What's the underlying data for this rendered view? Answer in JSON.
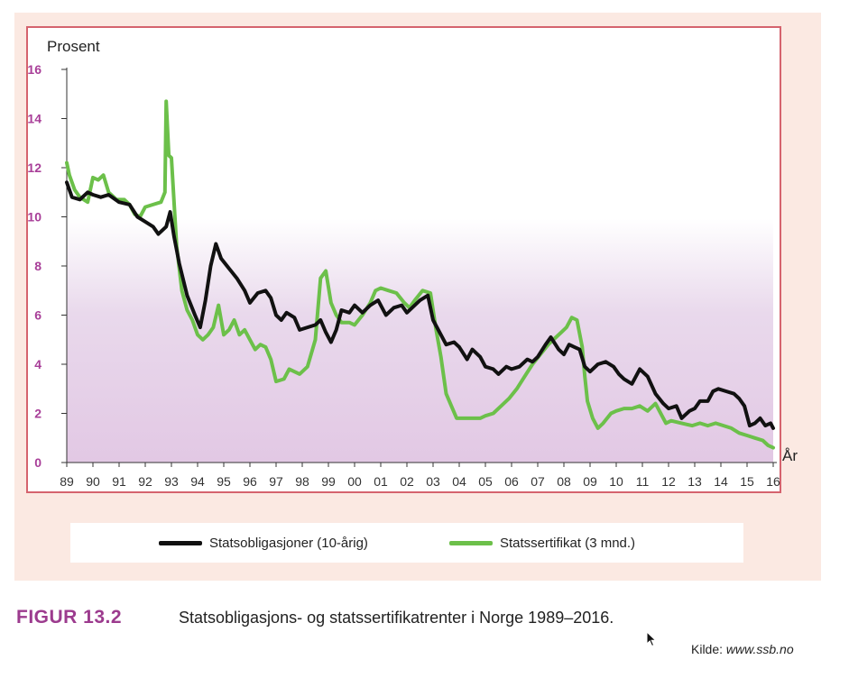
{
  "figure": {
    "label": "FIGUR 13.2",
    "title": "Statsobligasjons- og statssertifikatrenter i Norge 1989–2016.",
    "source_prefix": "Kilde: ",
    "source_url": "www.ssb.no"
  },
  "chart_data": {
    "type": "line",
    "ylabel": "Prosent",
    "xlabel": "År",
    "ylim": [
      0,
      16
    ],
    "xlim": [
      1989,
      2016
    ],
    "yticks": [
      "0",
      "2",
      "4",
      "6",
      "8",
      "10",
      "12",
      "14",
      "16"
    ],
    "xticks": [
      "89",
      "90",
      "91",
      "92",
      "93",
      "94",
      "95",
      "96",
      "97",
      "98",
      "99",
      "00",
      "01",
      "02",
      "03",
      "04",
      "05",
      "06",
      "07",
      "08",
      "09",
      "10",
      "11",
      "12",
      "13",
      "14",
      "15",
      "16"
    ],
    "grid": false,
    "legend_position": "bottom",
    "series": [
      {
        "name": "Statsobligasjoner (10-årig)",
        "color": "#111111",
        "points": [
          [
            1989.0,
            11.4
          ],
          [
            1989.2,
            10.8
          ],
          [
            1989.5,
            10.7
          ],
          [
            1989.8,
            11.0
          ],
          [
            1990.0,
            10.9
          ],
          [
            1990.3,
            10.8
          ],
          [
            1990.6,
            10.9
          ],
          [
            1991.0,
            10.6
          ],
          [
            1991.4,
            10.5
          ],
          [
            1991.7,
            10.0
          ],
          [
            1992.0,
            9.8
          ],
          [
            1992.3,
            9.6
          ],
          [
            1992.5,
            9.3
          ],
          [
            1992.8,
            9.6
          ],
          [
            1992.95,
            10.2
          ],
          [
            1993.1,
            9.2
          ],
          [
            1993.3,
            8.1
          ],
          [
            1993.6,
            6.8
          ],
          [
            1993.9,
            6.0
          ],
          [
            1994.1,
            5.5
          ],
          [
            1994.3,
            6.6
          ],
          [
            1994.5,
            8.0
          ],
          [
            1994.7,
            8.9
          ],
          [
            1994.9,
            8.3
          ],
          [
            1995.2,
            7.9
          ],
          [
            1995.5,
            7.5
          ],
          [
            1995.8,
            7.0
          ],
          [
            1996.0,
            6.5
          ],
          [
            1996.3,
            6.9
          ],
          [
            1996.6,
            7.0
          ],
          [
            1996.8,
            6.7
          ],
          [
            1997.0,
            6.0
          ],
          [
            1997.2,
            5.8
          ],
          [
            1997.4,
            6.1
          ],
          [
            1997.7,
            5.9
          ],
          [
            1997.9,
            5.4
          ],
          [
            1998.2,
            5.5
          ],
          [
            1998.5,
            5.6
          ],
          [
            1998.7,
            5.8
          ],
          [
            1998.9,
            5.3
          ],
          [
            1999.1,
            4.9
          ],
          [
            1999.3,
            5.4
          ],
          [
            1999.5,
            6.2
          ],
          [
            1999.8,
            6.1
          ],
          [
            2000.0,
            6.4
          ],
          [
            2000.3,
            6.1
          ],
          [
            2000.6,
            6.4
          ],
          [
            2000.9,
            6.6
          ],
          [
            2001.2,
            6.0
          ],
          [
            2001.5,
            6.3
          ],
          [
            2001.8,
            6.4
          ],
          [
            2002.0,
            6.1
          ],
          [
            2002.3,
            6.4
          ],
          [
            2002.5,
            6.6
          ],
          [
            2002.8,
            6.8
          ],
          [
            2003.0,
            5.8
          ],
          [
            2003.3,
            5.2
          ],
          [
            2003.5,
            4.8
          ],
          [
            2003.8,
            4.9
          ],
          [
            2004.0,
            4.7
          ],
          [
            2004.3,
            4.2
          ],
          [
            2004.5,
            4.6
          ],
          [
            2004.8,
            4.3
          ],
          [
            2005.0,
            3.9
          ],
          [
            2005.3,
            3.8
          ],
          [
            2005.5,
            3.6
          ],
          [
            2005.8,
            3.9
          ],
          [
            2006.0,
            3.8
          ],
          [
            2006.3,
            3.9
          ],
          [
            2006.6,
            4.2
          ],
          [
            2006.8,
            4.1
          ],
          [
            2007.0,
            4.3
          ],
          [
            2007.3,
            4.8
          ],
          [
            2007.5,
            5.1
          ],
          [
            2007.8,
            4.6
          ],
          [
            2008.0,
            4.4
          ],
          [
            2008.2,
            4.8
          ],
          [
            2008.4,
            4.7
          ],
          [
            2008.6,
            4.6
          ],
          [
            2008.8,
            3.9
          ],
          [
            2009.0,
            3.7
          ],
          [
            2009.3,
            4.0
          ],
          [
            2009.6,
            4.1
          ],
          [
            2009.9,
            3.9
          ],
          [
            2010.1,
            3.6
          ],
          [
            2010.3,
            3.4
          ],
          [
            2010.6,
            3.2
          ],
          [
            2010.9,
            3.8
          ],
          [
            2011.2,
            3.5
          ],
          [
            2011.5,
            2.8
          ],
          [
            2011.8,
            2.4
          ],
          [
            2012.0,
            2.2
          ],
          [
            2012.3,
            2.3
          ],
          [
            2012.5,
            1.8
          ],
          [
            2012.8,
            2.1
          ],
          [
            2013.0,
            2.2
          ],
          [
            2013.2,
            2.5
          ],
          [
            2013.5,
            2.5
          ],
          [
            2013.7,
            2.9
          ],
          [
            2013.9,
            3.0
          ],
          [
            2014.2,
            2.9
          ],
          [
            2014.5,
            2.8
          ],
          [
            2014.7,
            2.6
          ],
          [
            2014.9,
            2.3
          ],
          [
            2015.1,
            1.5
          ],
          [
            2015.3,
            1.6
          ],
          [
            2015.5,
            1.8
          ],
          [
            2015.7,
            1.5
          ],
          [
            2015.9,
            1.6
          ],
          [
            2016.0,
            1.4
          ]
        ]
      },
      {
        "name": "Statssertifikat (3 mnd.)",
        "color": "#6cc04a",
        "points": [
          [
            1989.0,
            12.2
          ],
          [
            1989.1,
            11.7
          ],
          [
            1989.3,
            11.1
          ],
          [
            1989.5,
            10.8
          ],
          [
            1989.8,
            10.6
          ],
          [
            1990.0,
            11.6
          ],
          [
            1990.2,
            11.5
          ],
          [
            1990.4,
            11.7
          ],
          [
            1990.6,
            11.0
          ],
          [
            1990.9,
            10.7
          ],
          [
            1991.2,
            10.7
          ],
          [
            1991.4,
            10.5
          ],
          [
            1991.6,
            10.1
          ],
          [
            1991.8,
            10.0
          ],
          [
            1992.0,
            10.4
          ],
          [
            1992.3,
            10.5
          ],
          [
            1992.6,
            10.6
          ],
          [
            1992.75,
            11.0
          ],
          [
            1992.8,
            14.7
          ],
          [
            1992.9,
            12.5
          ],
          [
            1993.0,
            12.4
          ],
          [
            1993.2,
            8.8
          ],
          [
            1993.4,
            7.0
          ],
          [
            1993.6,
            6.2
          ],
          [
            1993.8,
            5.8
          ],
          [
            1994.0,
            5.2
          ],
          [
            1994.2,
            5.0
          ],
          [
            1994.4,
            5.2
          ],
          [
            1994.6,
            5.5
          ],
          [
            1994.8,
            6.4
          ],
          [
            1995.0,
            5.2
          ],
          [
            1995.2,
            5.4
          ],
          [
            1995.4,
            5.8
          ],
          [
            1995.6,
            5.2
          ],
          [
            1995.8,
            5.4
          ],
          [
            1996.0,
            5.0
          ],
          [
            1996.2,
            4.6
          ],
          [
            1996.4,
            4.8
          ],
          [
            1996.6,
            4.7
          ],
          [
            1996.8,
            4.2
          ],
          [
            1997.0,
            3.3
          ],
          [
            1997.3,
            3.4
          ],
          [
            1997.5,
            3.8
          ],
          [
            1997.7,
            3.7
          ],
          [
            1997.9,
            3.6
          ],
          [
            1998.2,
            3.9
          ],
          [
            1998.5,
            5.0
          ],
          [
            1998.7,
            7.5
          ],
          [
            1998.9,
            7.8
          ],
          [
            1999.1,
            6.5
          ],
          [
            1999.3,
            6.0
          ],
          [
            1999.5,
            5.7
          ],
          [
            1999.8,
            5.7
          ],
          [
            2000.0,
            5.6
          ],
          [
            2000.3,
            6.0
          ],
          [
            2000.6,
            6.5
          ],
          [
            2000.8,
            7.0
          ],
          [
            2001.0,
            7.1
          ],
          [
            2001.3,
            7.0
          ],
          [
            2001.6,
            6.9
          ],
          [
            2001.9,
            6.5
          ],
          [
            2002.1,
            6.3
          ],
          [
            2002.3,
            6.6
          ],
          [
            2002.6,
            7.0
          ],
          [
            2002.9,
            6.9
          ],
          [
            2003.1,
            5.5
          ],
          [
            2003.3,
            4.3
          ],
          [
            2003.5,
            2.8
          ],
          [
            2003.7,
            2.3
          ],
          [
            2003.9,
            1.8
          ],
          [
            2004.2,
            1.8
          ],
          [
            2004.5,
            1.8
          ],
          [
            2004.8,
            1.8
          ],
          [
            2005.0,
            1.9
          ],
          [
            2005.3,
            2.0
          ],
          [
            2005.6,
            2.3
          ],
          [
            2005.9,
            2.6
          ],
          [
            2006.2,
            3.0
          ],
          [
            2006.5,
            3.5
          ],
          [
            2006.8,
            4.0
          ],
          [
            2007.1,
            4.4
          ],
          [
            2007.4,
            4.8
          ],
          [
            2007.7,
            5.1
          ],
          [
            2007.9,
            5.3
          ],
          [
            2008.1,
            5.5
          ],
          [
            2008.3,
            5.9
          ],
          [
            2008.5,
            5.8
          ],
          [
            2008.7,
            4.7
          ],
          [
            2008.8,
            3.5
          ],
          [
            2008.9,
            2.5
          ],
          [
            2009.1,
            1.8
          ],
          [
            2009.3,
            1.4
          ],
          [
            2009.5,
            1.6
          ],
          [
            2009.8,
            2.0
          ],
          [
            2010.0,
            2.1
          ],
          [
            2010.3,
            2.2
          ],
          [
            2010.6,
            2.2
          ],
          [
            2010.9,
            2.3
          ],
          [
            2011.2,
            2.1
          ],
          [
            2011.5,
            2.4
          ],
          [
            2011.7,
            2.0
          ],
          [
            2011.9,
            1.6
          ],
          [
            2012.1,
            1.7
          ],
          [
            2012.5,
            1.6
          ],
          [
            2012.9,
            1.5
          ],
          [
            2013.2,
            1.6
          ],
          [
            2013.5,
            1.5
          ],
          [
            2013.8,
            1.6
          ],
          [
            2014.1,
            1.5
          ],
          [
            2014.4,
            1.4
          ],
          [
            2014.7,
            1.2
          ],
          [
            2015.0,
            1.1
          ],
          [
            2015.3,
            1.0
          ],
          [
            2015.6,
            0.9
          ],
          [
            2015.8,
            0.7
          ],
          [
            2016.0,
            0.6
          ]
        ]
      }
    ]
  }
}
